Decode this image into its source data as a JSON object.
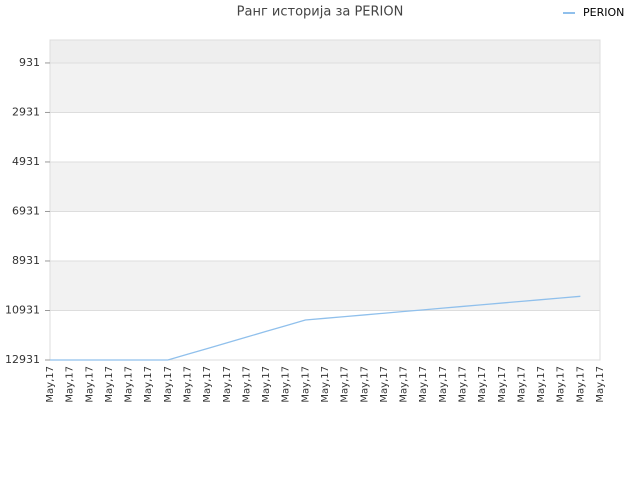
{
  "chart_data": {
    "type": "line",
    "title": "Ранг историја за PERION",
    "categories": [
      "May,17",
      "May,17",
      "May,17",
      "May,17",
      "May,17",
      "May,17",
      "May,17",
      "May,17",
      "May,17",
      "May,17",
      "May,17",
      "May,17",
      "May,17",
      "May,17",
      "May,17",
      "May,17",
      "May,17",
      "May,17",
      "May,17",
      "May,17",
      "May,17",
      "May,17",
      "May,17",
      "May,17",
      "May,17",
      "May,17",
      "May,17",
      "May,17",
      "May,17"
    ],
    "series": [
      {
        "name": "PERION",
        "color": "#90c0ec",
        "values": [
          12931,
          12931,
          12931,
          12931,
          12931,
          12931,
          12931,
          12700,
          12469,
          12238,
          12007,
          11776,
          11546,
          11315,
          11247,
          11179,
          11110,
          11042,
          10973,
          10905,
          10837,
          10768,
          10700,
          10631,
          10563,
          10495,
          10426,
          10358,
          null
        ]
      }
    ],
    "ylim": [
      12931,
      4
    ],
    "y_inverted": true,
    "yticks": [
      931,
      2931,
      4931,
      6931,
      8931,
      10931,
      12931
    ],
    "grid": true,
    "legend": "top-right"
  }
}
